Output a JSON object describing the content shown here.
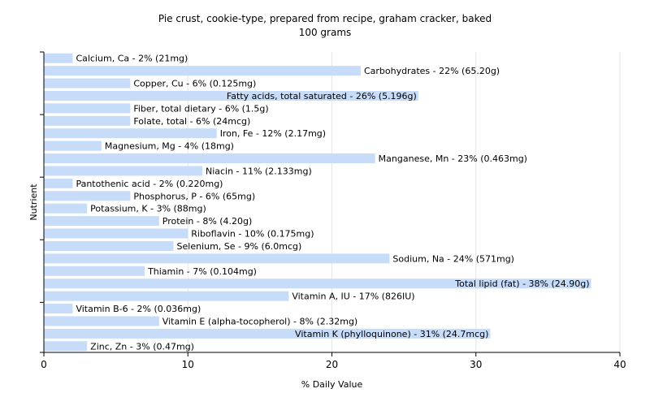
{
  "chart_data": {
    "type": "bar",
    "orientation": "horizontal",
    "title": "Pie crust, cookie-type, prepared from recipe, graham cracker, baked",
    "subtitle": "100 grams",
    "xlabel": "% Daily Value",
    "ylabel": "Nutrient",
    "xlim": [
      0,
      40
    ],
    "xticks": [
      0,
      10,
      20,
      30,
      40
    ],
    "grid": true,
    "bar_color": "#c6dcf8",
    "categories": [
      "Calcium, Ca",
      "Carbohydrates",
      "Copper, Cu",
      "Fatty acids, total saturated",
      "Fiber, total dietary",
      "Folate, total",
      "Iron, Fe",
      "Magnesium, Mg",
      "Manganese, Mn",
      "Niacin",
      "Pantothenic acid",
      "Phosphorus, P",
      "Potassium, K",
      "Protein",
      "Riboflavin",
      "Selenium, Se",
      "Sodium, Na",
      "Thiamin",
      "Total lipid (fat)",
      "Vitamin A, IU",
      "Vitamin B-6",
      "Vitamin E (alpha-tocopherol)",
      "Vitamin K (phylloquinone)",
      "Zinc, Zn"
    ],
    "values": [
      2,
      22,
      6,
      26,
      6,
      6,
      12,
      4,
      23,
      11,
      2,
      6,
      3,
      8,
      10,
      9,
      24,
      7,
      38,
      17,
      2,
      8,
      31,
      3
    ],
    "labels": [
      "Calcium, Ca - 2% (21mg)",
      "Carbohydrates - 22% (65.20g)",
      "Copper, Cu - 6% (0.125mg)",
      "Fatty acids, total saturated - 26% (5.196g)",
      "Fiber, total dietary - 6% (1.5g)",
      "Folate, total - 6% (24mcg)",
      "Iron, Fe - 12% (2.17mg)",
      "Magnesium, Mg - 4% (18mg)",
      "Manganese, Mn - 23% (0.463mg)",
      "Niacin - 11% (2.133mg)",
      "Pantothenic acid - 2% (0.220mg)",
      "Phosphorus, P - 6% (65mg)",
      "Potassium, K - 3% (88mg)",
      "Protein - 8% (4.20g)",
      "Riboflavin - 10% (0.175mg)",
      "Selenium, Se - 9% (6.0mcg)",
      "Sodium, Na - 24% (571mg)",
      "Thiamin - 7% (0.104mg)",
      "Total lipid (fat) - 38% (24.90g)",
      "Vitamin A, IU - 17% (826IU)",
      "Vitamin B-6 - 2% (0.036mg)",
      "Vitamin E (alpha-tocopherol) - 8% (2.32mg)",
      "Vitamin K (phylloquinone) - 31% (24.7mcg)",
      "Zinc, Zn - 3% (0.47mg)"
    ]
  }
}
